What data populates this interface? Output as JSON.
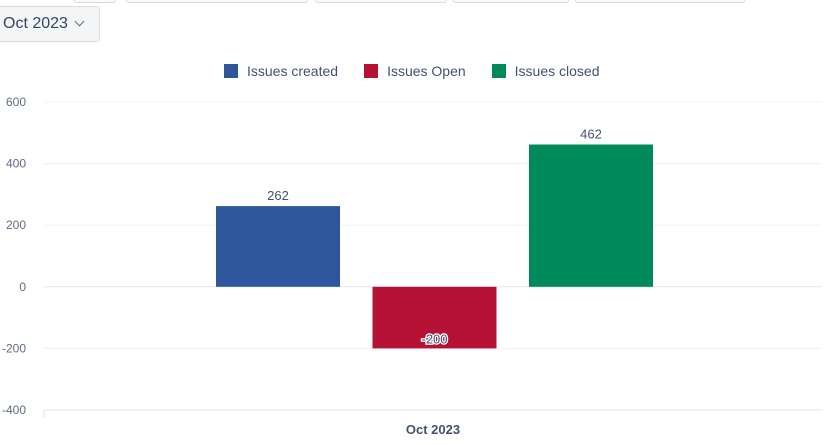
{
  "filter": {
    "label": "Oct 2023"
  },
  "chart_data": {
    "type": "bar",
    "categories": [
      "Oct 2023"
    ],
    "series": [
      {
        "name": "Issues created",
        "values": [
          262
        ],
        "color": "#2e569c"
      },
      {
        "name": "Issues Open",
        "values": [
          -200
        ],
        "color": "#b51235"
      },
      {
        "name": "Issues closed",
        "values": [
          462
        ],
        "color": "#008a5b"
      }
    ],
    "ylim": [
      -400,
      600
    ],
    "yticks": [
      600,
      400,
      200,
      0,
      -200,
      -400
    ],
    "grid": true,
    "legend": "top-center",
    "data_labels": true
  }
}
